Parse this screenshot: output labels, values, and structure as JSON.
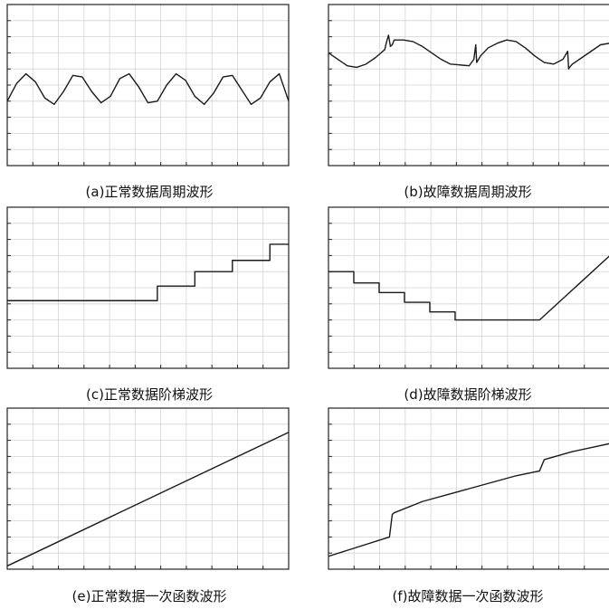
{
  "chart_data": [
    {
      "id": "a",
      "type": "line",
      "title": "(a)正常数据周期波形",
      "grid": true,
      "xlim": [
        0,
        300
      ],
      "ylim": [
        0,
        10
      ],
      "series": [
        {
          "pattern": "periodic",
          "x": [
            0,
            10,
            20,
            30,
            40,
            50,
            60,
            70,
            80,
            90,
            100,
            110,
            120,
            130,
            140,
            150,
            160,
            170,
            180,
            190,
            200,
            210,
            220,
            230,
            240,
            250,
            260,
            270,
            280,
            290,
            300
          ],
          "values": [
            4.0,
            5.1,
            5.7,
            5.2,
            4.2,
            3.8,
            4.6,
            5.6,
            5.5,
            4.6,
            3.9,
            4.3,
            5.4,
            5.7,
            4.9,
            3.9,
            4.0,
            5.0,
            5.7,
            5.3,
            4.3,
            3.8,
            4.5,
            5.5,
            5.6,
            4.7,
            3.8,
            4.2,
            5.2,
            5.7,
            4.0
          ]
        }
      ]
    },
    {
      "id": "b",
      "type": "line",
      "title": "(b)故障数据周期波形",
      "grid": true,
      "xlim": [
        0,
        300
      ],
      "ylim": [
        0,
        10
      ],
      "series": [
        {
          "pattern": "periodic-with-spikes",
          "x": [
            0,
            10,
            20,
            30,
            40,
            50,
            60,
            62,
            64,
            66,
            68,
            70,
            80,
            90,
            100,
            110,
            120,
            130,
            150,
            155,
            157,
            158,
            160,
            162,
            170,
            180,
            190,
            200,
            210,
            220,
            230,
            240,
            250,
            255,
            256,
            257,
            260,
            270,
            280,
            290,
            300
          ],
          "values": [
            7.0,
            6.6,
            6.2,
            6.1,
            6.3,
            6.7,
            7.2,
            7.7,
            8.1,
            7.4,
            7.5,
            7.8,
            7.8,
            7.7,
            7.4,
            7.0,
            6.6,
            6.3,
            6.2,
            6.6,
            7.5,
            6.4,
            6.6,
            6.8,
            7.3,
            7.6,
            7.8,
            7.7,
            7.3,
            6.8,
            6.4,
            6.3,
            6.6,
            7.1,
            6.0,
            6.1,
            6.3,
            6.7,
            7.1,
            7.5,
            7.6
          ]
        }
      ]
    },
    {
      "id": "c",
      "type": "line",
      "title": "(c)正常数据阶梯波形",
      "grid": true,
      "xlim": [
        0,
        300
      ],
      "ylim": [
        0,
        10
      ],
      "series": [
        {
          "pattern": "stair-up",
          "x": [
            0,
            160,
            160,
            200,
            200,
            240,
            240,
            280,
            280,
            300
          ],
          "values": [
            4.2,
            4.2,
            5.1,
            5.1,
            6.0,
            6.0,
            6.7,
            6.7,
            7.7,
            7.7
          ]
        }
      ]
    },
    {
      "id": "d",
      "type": "line",
      "title": "(d)故障数据阶梯波形",
      "grid": true,
      "xlim": [
        0,
        300
      ],
      "ylim": [
        0,
        10
      ],
      "series": [
        {
          "pattern": "stair-down-then-ramp",
          "x": [
            0,
            27,
            27,
            54,
            54,
            81,
            81,
            108,
            108,
            135,
            135,
            225,
            300
          ],
          "values": [
            6.0,
            6.0,
            5.3,
            5.3,
            4.7,
            4.7,
            4.1,
            4.1,
            3.5,
            3.5,
            3.0,
            3.0,
            7.0
          ]
        }
      ]
    },
    {
      "id": "e",
      "type": "line",
      "title": "(e)正常数据一次函数波形",
      "grid": true,
      "xlim": [
        0,
        300
      ],
      "ylim": [
        0,
        10
      ],
      "series": [
        {
          "pattern": "linear",
          "x": [
            0,
            300
          ],
          "values": [
            0.2,
            8.5
          ]
        }
      ]
    },
    {
      "id": "f",
      "type": "line",
      "title": "(f)故障数据一次函数波形",
      "grid": true,
      "xlim": [
        0,
        300
      ],
      "ylim": [
        0,
        10
      ],
      "series": [
        {
          "pattern": "linear-with-jumps",
          "x": [
            0,
            65,
            68,
            70,
            100,
            150,
            200,
            225,
            230,
            260,
            300
          ],
          "values": [
            0.8,
            2.0,
            3.4,
            3.5,
            4.2,
            5.0,
            5.8,
            6.1,
            6.8,
            7.3,
            7.8
          ]
        }
      ]
    }
  ]
}
